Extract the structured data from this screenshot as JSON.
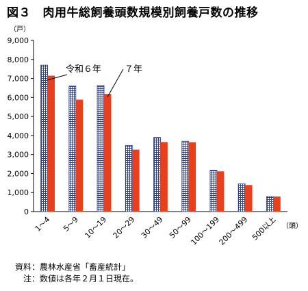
{
  "title": "図３　肉用牛総飼養頭数規模別飼養戸数の推移",
  "notes": {
    "source": "資料：農林水産省「畜産統計」",
    "note": "　注：数値は各年２月１日現在。"
  },
  "chart_data": {
    "type": "bar",
    "y_unit_label": "（戸）",
    "x_unit_label": "（頭）",
    "ylim": [
      0,
      9000
    ],
    "yticks": [
      "0",
      "1,000",
      "2,000",
      "3,000",
      "4,000",
      "5,000",
      "6,000",
      "7,000",
      "8,000",
      "9,000"
    ],
    "grid": false,
    "categories": [
      "1～4",
      "5～9",
      "10～19",
      "20～29",
      "30～49",
      "50～99",
      "100～199",
      "200～499",
      "500以上"
    ],
    "series": [
      {
        "name": "令和６年",
        "color": "#2e3f8f",
        "pattern": "grid",
        "values": [
          7700,
          6600,
          6630,
          3480,
          3900,
          3700,
          2180,
          1460,
          790
        ]
      },
      {
        "name": "７年",
        "color": "#e8401c",
        "pattern": "solid",
        "values": [
          7130,
          5870,
          6170,
          3240,
          3640,
          3630,
          2100,
          1380,
          780
        ]
      }
    ]
  }
}
